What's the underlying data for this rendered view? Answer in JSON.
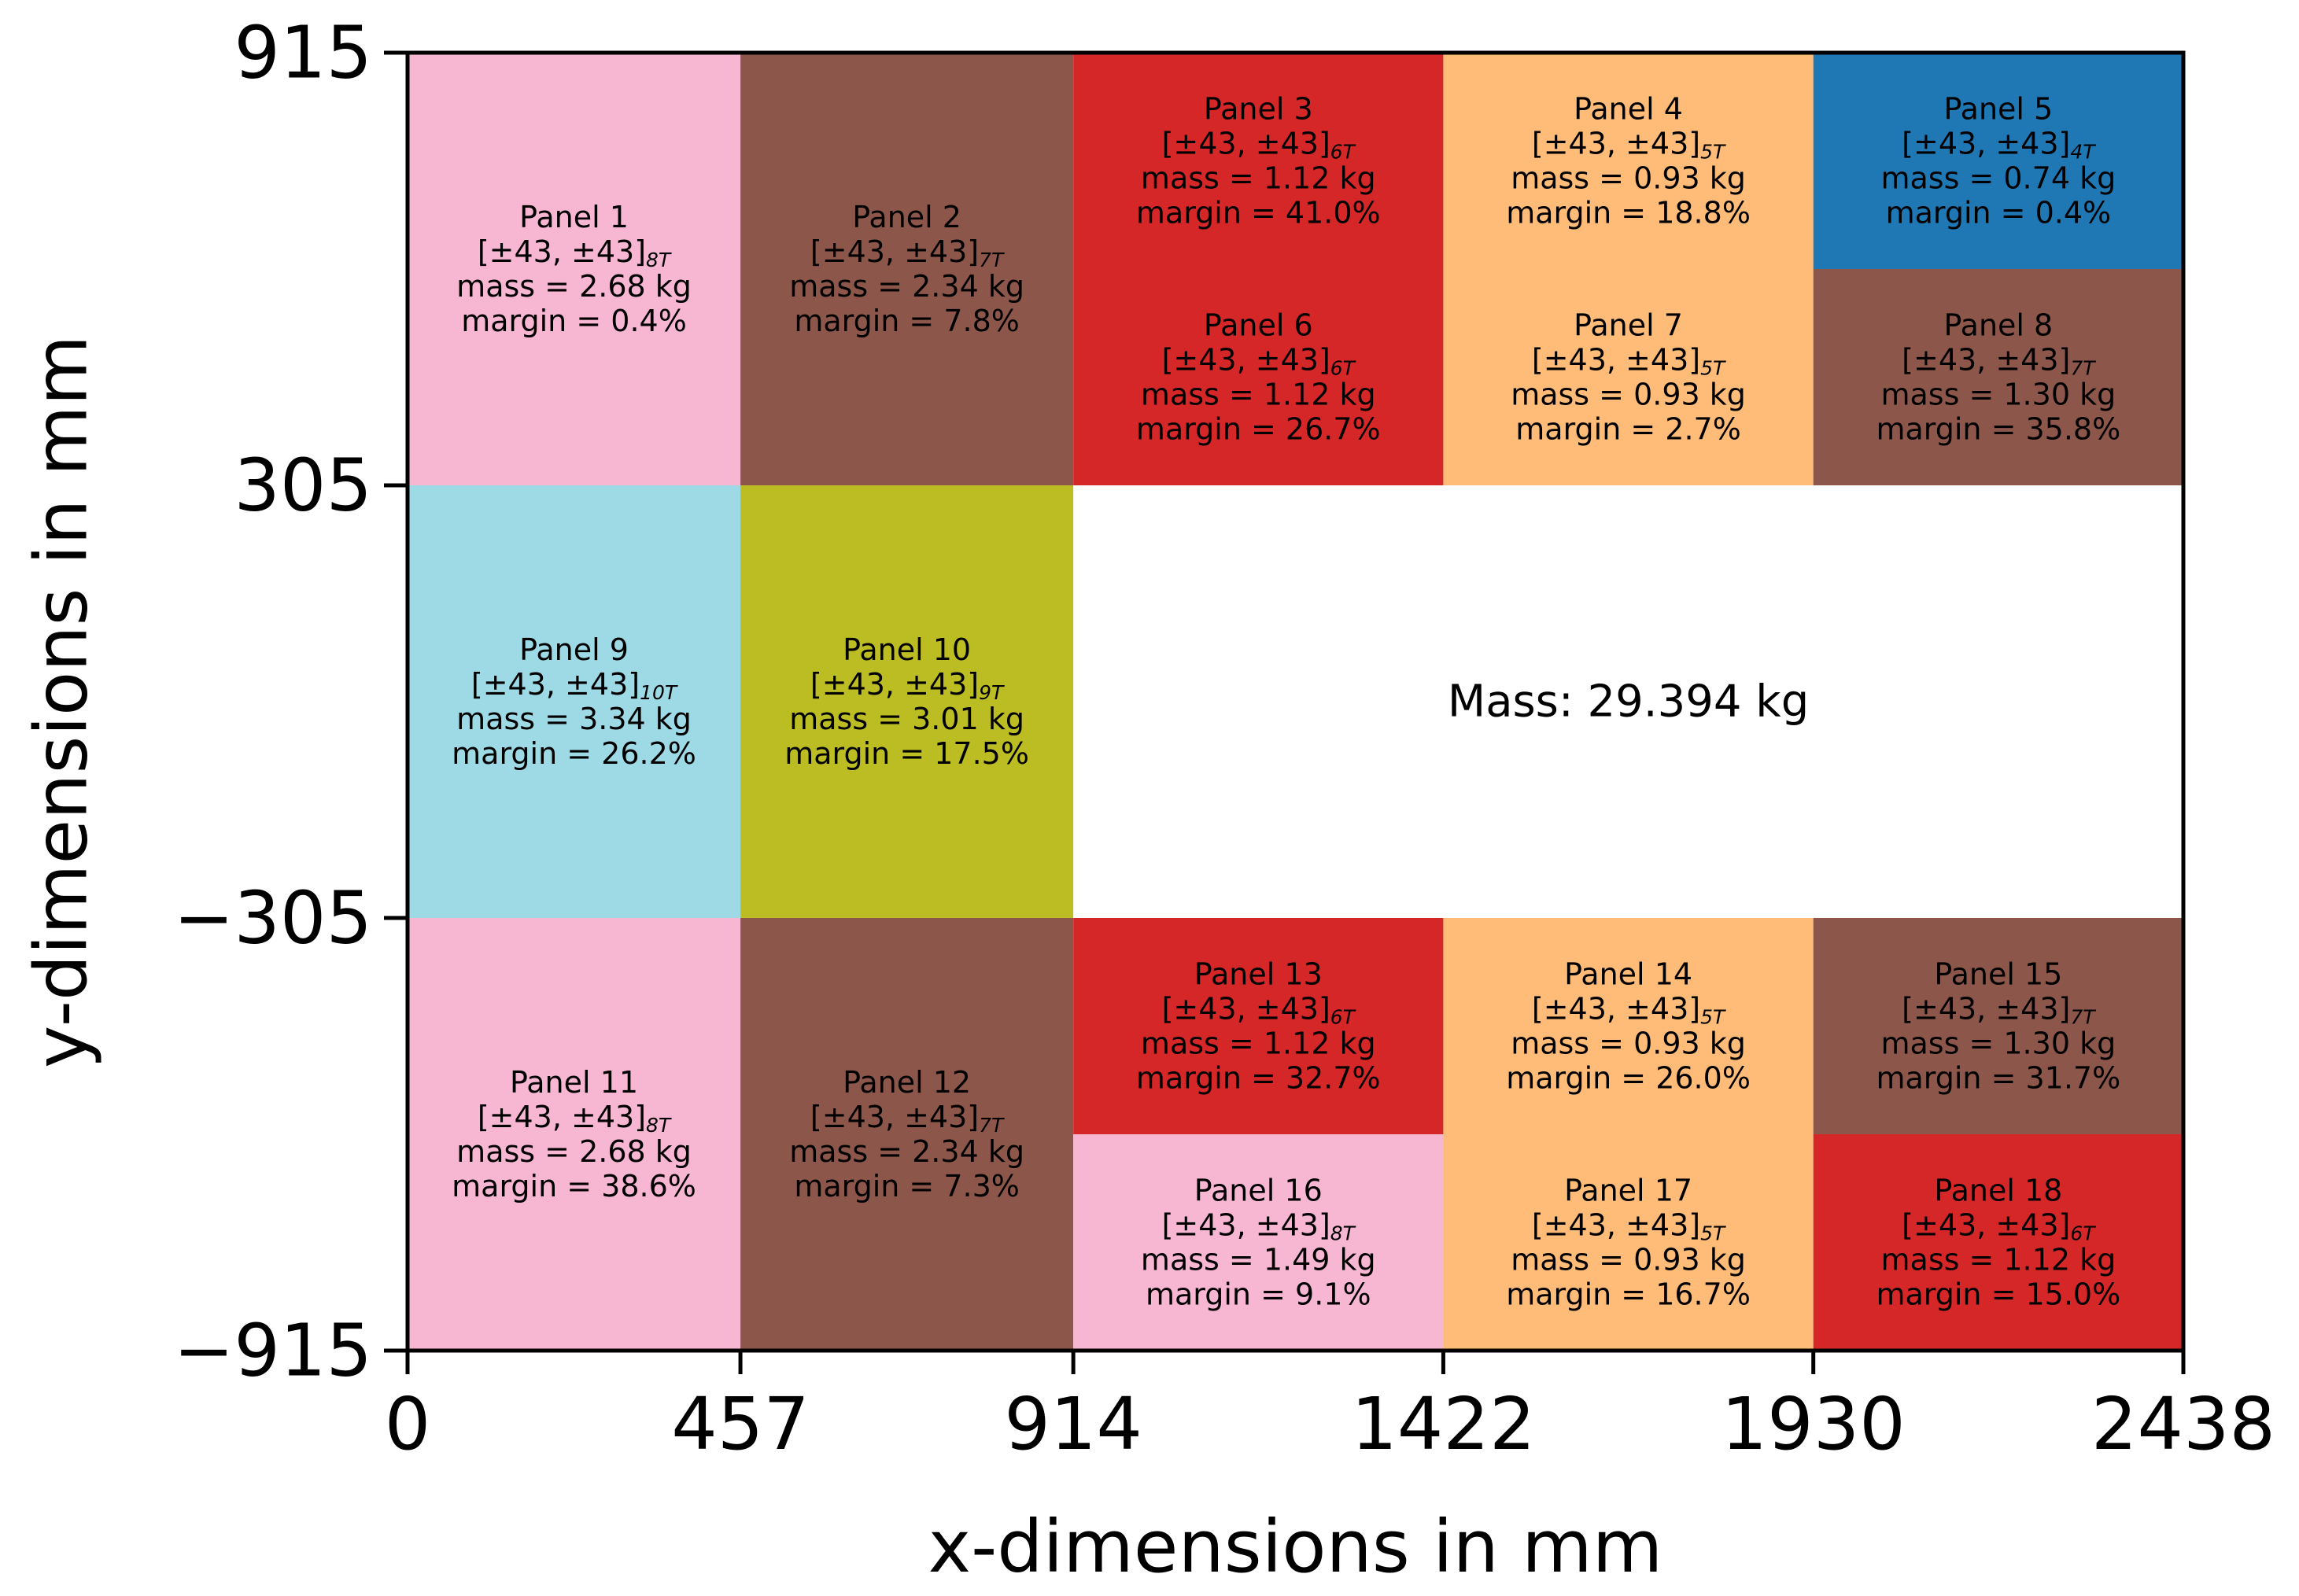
{
  "chart_data": {
    "type": "heatmap",
    "xlabel": "x-dimensions in mm",
    "ylabel": "y-dimensions in mm",
    "xlim": [
      0,
      2438
    ],
    "ylim": [
      -915,
      915
    ],
    "x_ticks": [
      "0",
      "457",
      "914",
      "1422",
      "1930",
      "2438"
    ],
    "y_ticks": [
      "915",
      "305",
      "−305",
      "−915"
    ],
    "annotation": "Mass: 29.394 kg",
    "layup_prefix": "[±43, ±43]",
    "colors": {
      "pink": "#f7b6d2",
      "brown": "#8c564b",
      "red": "#d62728",
      "orange": "#ffbb78",
      "blue": "#1f77b4",
      "cyan": "#9edae5",
      "olive": "#bcbd22"
    },
    "panels": [
      {
        "name": "Panel 1",
        "x0": 0,
        "x1": 457,
        "y0": 305,
        "y1": 915,
        "color": "pink",
        "layup_sub": "8T",
        "mass": "mass = 2.68 kg",
        "margin": "margin = 0.4%"
      },
      {
        "name": "Panel 2",
        "x0": 457,
        "x1": 914,
        "y0": 305,
        "y1": 915,
        "color": "brown",
        "layup_sub": "7T",
        "mass": "mass = 2.34 kg",
        "margin": "margin = 7.8%"
      },
      {
        "name": "Panel 3",
        "x0": 914,
        "x1": 1422,
        "y0": 610,
        "y1": 915,
        "color": "red",
        "layup_sub": "6T",
        "mass": "mass = 1.12 kg",
        "margin": "margin = 41.0%"
      },
      {
        "name": "Panel 4",
        "x0": 1422,
        "x1": 1930,
        "y0": 610,
        "y1": 915,
        "color": "orange",
        "layup_sub": "5T",
        "mass": "mass = 0.93 kg",
        "margin": "margin = 18.8%"
      },
      {
        "name": "Panel 5",
        "x0": 1930,
        "x1": 2438,
        "y0": 610,
        "y1": 915,
        "color": "blue",
        "layup_sub": "4T",
        "mass": "mass = 0.74 kg",
        "margin": "margin = 0.4%"
      },
      {
        "name": "Panel 6",
        "x0": 914,
        "x1": 1422,
        "y0": 305,
        "y1": 610,
        "color": "red",
        "layup_sub": "6T",
        "mass": "mass = 1.12 kg",
        "margin": "margin = 26.7%"
      },
      {
        "name": "Panel 7",
        "x0": 1422,
        "x1": 1930,
        "y0": 305,
        "y1": 610,
        "color": "orange",
        "layup_sub": "5T",
        "mass": "mass = 0.93 kg",
        "margin": "margin = 2.7%"
      },
      {
        "name": "Panel 8",
        "x0": 1930,
        "x1": 2438,
        "y0": 305,
        "y1": 610,
        "color": "brown",
        "layup_sub": "7T",
        "mass": "mass = 1.30 kg",
        "margin": "margin = 35.8%"
      },
      {
        "name": "Panel 9",
        "x0": 0,
        "x1": 457,
        "y0": -305,
        "y1": 305,
        "color": "cyan",
        "layup_sub": "10T",
        "mass": "mass = 3.34 kg",
        "margin": "margin = 26.2%"
      },
      {
        "name": "Panel 10",
        "x0": 457,
        "x1": 914,
        "y0": -305,
        "y1": 305,
        "color": "olive",
        "layup_sub": "9T",
        "mass": "mass = 3.01 kg",
        "margin": "margin = 17.5%"
      },
      {
        "name": "Panel 11",
        "x0": 0,
        "x1": 457,
        "y0": -915,
        "y1": -305,
        "color": "pink",
        "layup_sub": "8T",
        "mass": "mass = 2.68 kg",
        "margin": "margin = 38.6%"
      },
      {
        "name": "Panel 12",
        "x0": 457,
        "x1": 914,
        "y0": -915,
        "y1": -305,
        "color": "brown",
        "layup_sub": "7T",
        "mass": "mass = 2.34 kg",
        "margin": "margin = 7.3%"
      },
      {
        "name": "Panel 13",
        "x0": 914,
        "x1": 1422,
        "y0": -610,
        "y1": -305,
        "color": "red",
        "layup_sub": "6T",
        "mass": "mass = 1.12 kg",
        "margin": "margin = 32.7%"
      },
      {
        "name": "Panel 14",
        "x0": 1422,
        "x1": 1930,
        "y0": -610,
        "y1": -305,
        "color": "orange",
        "layup_sub": "5T",
        "mass": "mass = 0.93 kg",
        "margin": "margin = 26.0%"
      },
      {
        "name": "Panel 15",
        "x0": 1930,
        "x1": 2438,
        "y0": -610,
        "y1": -305,
        "color": "brown",
        "layup_sub": "7T",
        "mass": "mass = 1.30 kg",
        "margin": "margin = 31.7%"
      },
      {
        "name": "Panel 16",
        "x0": 914,
        "x1": 1422,
        "y0": -915,
        "y1": -610,
        "color": "pink",
        "layup_sub": "8T",
        "mass": "mass = 1.49 kg",
        "margin": "margin = 9.1%"
      },
      {
        "name": "Panel 17",
        "x0": 1422,
        "x1": 1930,
        "y0": -915,
        "y1": -610,
        "color": "orange",
        "layup_sub": "5T",
        "mass": "mass = 0.93 kg",
        "margin": "margin = 16.7%"
      },
      {
        "name": "Panel 18",
        "x0": 1930,
        "x1": 2438,
        "y0": -915,
        "y1": -610,
        "color": "red",
        "layup_sub": "6T",
        "mass": "mass = 1.12 kg",
        "margin": "margin = 15.0%"
      }
    ]
  }
}
